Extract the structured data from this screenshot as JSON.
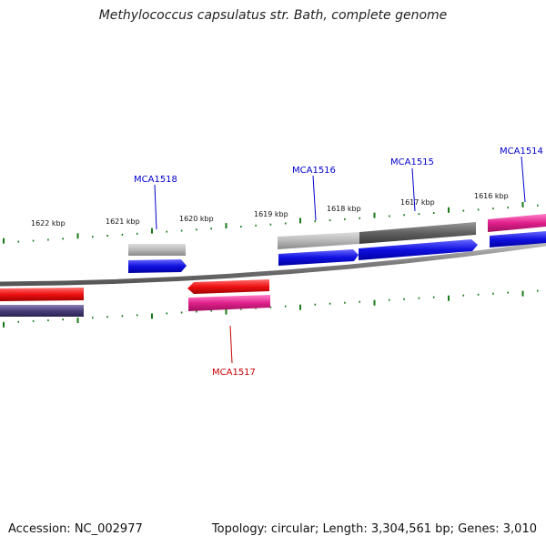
{
  "title": "Methylococcus capsulatus str. Bath, complete genome",
  "footer": {
    "accession": "Accession: NC_002977",
    "topology": "Topology: circular; Length: 3,304,561 bp; Genes: 3,010"
  },
  "ticks": [
    {
      "label": "1622 kbp"
    },
    {
      "label": "1621 kbp"
    },
    {
      "label": "1620 kbp"
    },
    {
      "label": "1619 kbp"
    },
    {
      "label": "1618 kbp"
    },
    {
      "label": "1617 kbp"
    },
    {
      "label": "1616 kbp"
    }
  ],
  "genes": [
    {
      "label": "MCA1518",
      "color": "#0000cc"
    },
    {
      "label": "MCA1516",
      "color": "#0000cc"
    },
    {
      "label": "MCA1515",
      "color": "#0000cc"
    },
    {
      "label": "MCA1514",
      "color": "#0000cc"
    },
    {
      "label": "MCA1517",
      "color": "#cc0000"
    }
  ],
  "colors": {
    "backbone": "#888888",
    "tick": "#1a7a1a",
    "forward_gene": "#1010e0",
    "reverse_gene": "#ee1111",
    "cog_pink": "#e0208c",
    "cog_gray_light": "#b8b8b8",
    "cog_gray_dark": "#606060",
    "cog_purple": "#4a3f7a"
  }
}
